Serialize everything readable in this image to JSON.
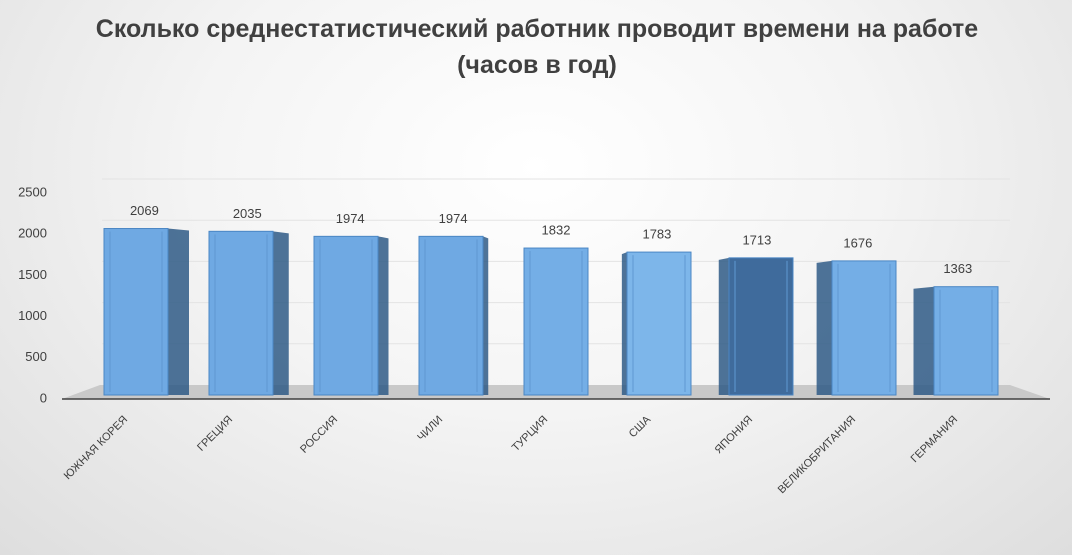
{
  "chart_data": {
    "type": "bar3d",
    "title": "Сколько среднестатистический работник проводит времени на работе (часов в год)",
    "categories": [
      "ЮЖНАЯ КОРЕЯ",
      "ГРЕЦИЯ",
      "РОССИЯ",
      "ЧИЛИ",
      "ТУРЦИЯ",
      "США",
      "ЯПОНИЯ",
      "ВЕЛИКОБРИТАНИЯ",
      "ГЕРМАНИЯ"
    ],
    "values": [
      2069,
      2035,
      1974,
      1974,
      1832,
      1783,
      1713,
      1676,
      1363
    ],
    "colors": [
      "#6fa9e3",
      "#6fa9e3",
      "#6fa9e3",
      "#6fa9e3",
      "#74aee6",
      "#7db6ea",
      "#3f6b9c",
      "#74aee6",
      "#74aee6"
    ],
    "ylim": [
      0,
      2500
    ],
    "yticks": [
      0,
      500,
      1000,
      1500,
      2000,
      2500
    ],
    "grid": true
  }
}
